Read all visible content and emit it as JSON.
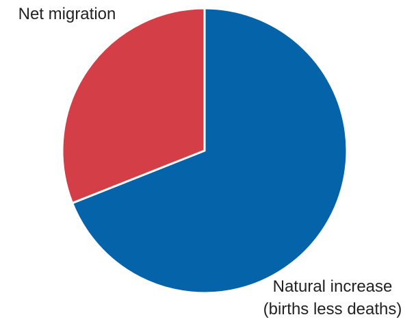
{
  "chart_data": {
    "type": "pie",
    "title": "",
    "start_angle_deg": 0,
    "direction": "clockwise",
    "slices": [
      {
        "label_lines": [
          "Natural increase",
          "(births less deaths)"
        ],
        "value": 69,
        "color": "#0563A9"
      },
      {
        "label_lines": [
          "Net migration"
        ],
        "value": 31,
        "color": "#D43F47"
      }
    ],
    "legend": "none"
  }
}
